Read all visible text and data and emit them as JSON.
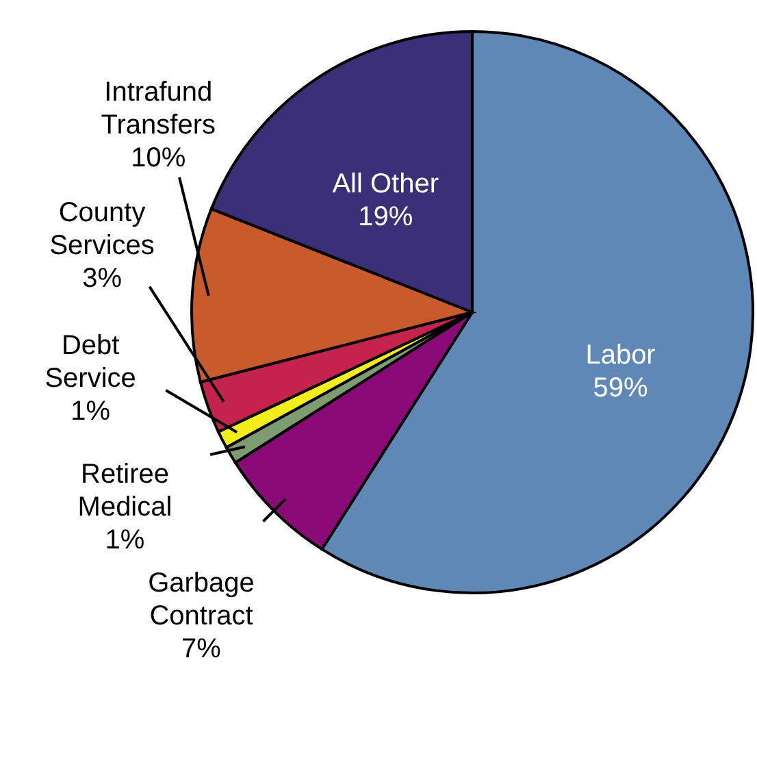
{
  "chart_data": {
    "type": "pie",
    "categories": [
      "Labor",
      "Garbage Contract",
      "Retiree Medical",
      "Debt Service",
      "County Services",
      "Intrafund Transfers",
      "All Other"
    ],
    "values": [
      59,
      7,
      1,
      1,
      3,
      10,
      19
    ],
    "colors": [
      "#6088b7",
      "#8a0b78",
      "#7d9c72",
      "#f2ee1c",
      "#c5234e",
      "#c85a2b",
      "#3b2f78"
    ],
    "value_labels": [
      "59%",
      "7%",
      "1%",
      "1%",
      "3%",
      "10%",
      "19%"
    ]
  }
}
